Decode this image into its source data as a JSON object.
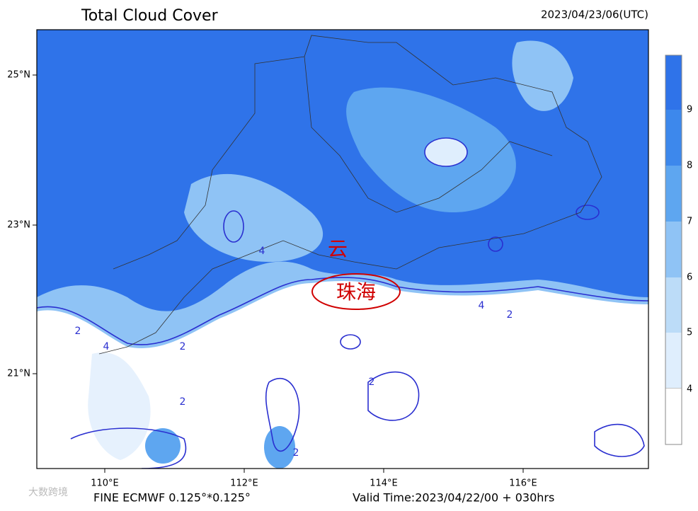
{
  "header": {
    "title": "Total Cloud Cover",
    "time": "2023/04/23/06(UTC)"
  },
  "map": {
    "lat_labels": [
      "25°N",
      "23°N",
      "21°N"
    ],
    "lon_labels": [
      "110°E",
      "112°E",
      "114°E",
      "116°E"
    ],
    "contour_labels": [
      "4",
      "2",
      "4",
      "2",
      "2",
      "4",
      "2",
      "2",
      "2"
    ],
    "annotations": [
      "云",
      "珠海"
    ]
  },
  "colorbar": {
    "labels": [
      "4",
      "5",
      "6",
      "7",
      "8",
      "9"
    ]
  },
  "footer": {
    "model": "FINE ECMWF 0.125°*0.125°",
    "valid_time": "Valid Time:2023/04/22/00 + 030hrs"
  },
  "watermark": "大数跨境"
}
